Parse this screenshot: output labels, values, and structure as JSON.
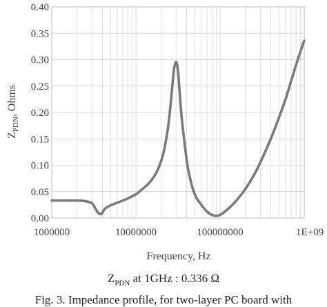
{
  "chart_data": {
    "type": "line",
    "xlabel": "Frequency, Hz",
    "ylabel_main": "Z",
    "ylabel_sub": "PDN",
    "ylabel_rest": ", Ohms",
    "xscale": "log",
    "xlim": [
      1000000,
      1000000000
    ],
    "ylim": [
      0,
      0.4
    ],
    "x_tick_values": [
      1000000,
      10000000,
      100000000,
      1000000000
    ],
    "x_tick_labels": [
      "1000000",
      "10000000",
      "100000000",
      "1E+09"
    ],
    "y_tick_values": [
      0,
      0.05,
      0.1,
      0.15,
      0.2,
      0.25,
      0.3,
      0.35,
      0.4
    ],
    "y_tick_labels": [
      "0.00",
      "0.05",
      "0.10",
      "0.15",
      "0.20",
      "0.25",
      "0.30",
      "0.35",
      "0.40"
    ],
    "grid": true,
    "line_color": "#7a7a7a",
    "grid_color": "#d9d9d9",
    "series": [
      {
        "x": [
          1000000,
          1500000,
          2000000,
          2500000,
          3000000,
          3300000,
          3600000,
          3900000,
          4200000,
          4600000,
          5000000,
          6000000,
          7000000,
          8000000,
          10000000,
          12000000,
          15000000,
          18000000,
          21000000,
          24000000,
          26000000,
          28000000,
          29000000,
          30000000,
          31000000,
          32000000,
          33000000,
          35000000,
          38000000,
          42000000,
          50000000,
          60000000,
          70000000,
          80000000,
          90000000,
          100000000,
          110000000,
          130000000,
          160000000,
          200000000,
          250000000,
          300000000,
          400000000,
          500000000,
          600000000,
          700000000,
          800000000,
          900000000,
          1000000000
        ],
        "y": [
          0.033,
          0.033,
          0.033,
          0.032,
          0.028,
          0.018,
          0.009,
          0.008,
          0.016,
          0.021,
          0.024,
          0.029,
          0.033,
          0.037,
          0.045,
          0.055,
          0.07,
          0.09,
          0.12,
          0.17,
          0.22,
          0.275,
          0.29,
          0.296,
          0.29,
          0.27,
          0.24,
          0.19,
          0.14,
          0.09,
          0.045,
          0.025,
          0.012,
          0.006,
          0.004,
          0.006,
          0.01,
          0.02,
          0.035,
          0.055,
          0.08,
          0.105,
          0.15,
          0.19,
          0.225,
          0.26,
          0.29,
          0.315,
          0.336
        ]
      }
    ]
  },
  "note": {
    "main": "Z",
    "sub": "PDN",
    "rest": " at 1GHz : 0.336 Ω"
  },
  "caption": "Fig. 3. Impedance profile, for two-layer PC  board with"
}
